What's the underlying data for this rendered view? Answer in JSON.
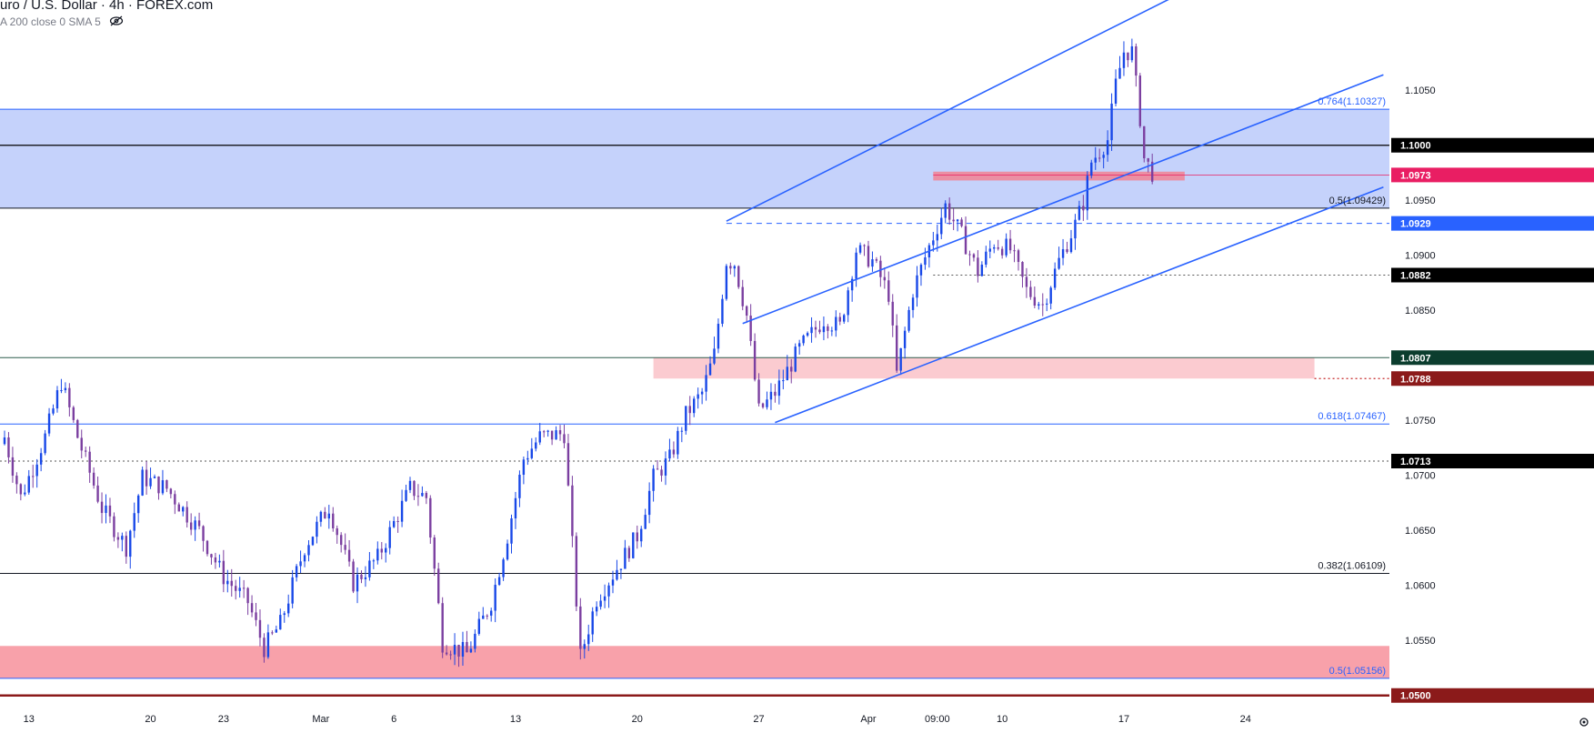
{
  "legend": {
    "title": "uro / U.S. Dollar · 4h · FOREX.com",
    "sma": "A 200 close 0 SMA 5",
    "eye_icon": "eye-slash-icon"
  },
  "settings_icon": "gear-icon",
  "chart_data": {
    "type": "candlestick",
    "y_range": [
      1.0494,
      1.1132
    ],
    "y_ticks": [
      {
        "v": 1.105,
        "label": "1.1050"
      },
      {
        "v": 1.095,
        "label": "1.0950"
      },
      {
        "v": 1.09,
        "label": "1.0900"
      },
      {
        "v": 1.085,
        "label": "1.0850"
      },
      {
        "v": 1.075,
        "label": "1.0750"
      },
      {
        "v": 1.07,
        "label": "1.0700"
      },
      {
        "v": 1.065,
        "label": "1.0650"
      },
      {
        "v": 1.06,
        "label": "1.0600"
      },
      {
        "v": 1.055,
        "label": "1.0550"
      }
    ],
    "x_ticks": [
      {
        "i": 6,
        "label": "13"
      },
      {
        "i": 36,
        "label": "20"
      },
      {
        "i": 54,
        "label": "23"
      },
      {
        "i": 78,
        "label": "Mar"
      },
      {
        "i": 96,
        "label": "6"
      },
      {
        "i": 126,
        "label": "13"
      },
      {
        "i": 156,
        "label": "20"
      },
      {
        "i": 186,
        "label": "27"
      },
      {
        "i": 213,
        "label": "Apr"
      },
      {
        "i": 230,
        "label": "09:00"
      },
      {
        "i": 246,
        "label": "10"
      },
      {
        "i": 276,
        "label": "17"
      },
      {
        "i": 306,
        "label": "24"
      }
    ],
    "price_labels": [
      {
        "v": 1.1,
        "label": "1.1000",
        "bg": "#000000",
        "fg": "#ffffff"
      },
      {
        "v": 1.0973,
        "label": "1.0973",
        "bg": "#e91e63",
        "fg": "#ffffff"
      },
      {
        "v": 1.0929,
        "label": "1.0929",
        "bg": "#2962ff",
        "fg": "#ffffff"
      },
      {
        "v": 1.0882,
        "label": "1.0882",
        "bg": "#000000",
        "fg": "#ffffff"
      },
      {
        "v": 1.0807,
        "label": "1.0807",
        "bg": "#0b3d2e",
        "fg": "#ffffff"
      },
      {
        "v": 1.0788,
        "label": "1.0788",
        "bg": "#8b1a1a",
        "fg": "#ffffff"
      },
      {
        "v": 1.0713,
        "label": "1.0713",
        "bg": "#000000",
        "fg": "#ffffff"
      },
      {
        "v": 1.05,
        "label": "1.0500",
        "bg": "#8b1a1a",
        "fg": "#ffffff"
      }
    ],
    "fib_levels": [
      {
        "v": 1.10327,
        "label": "0.764(1.10327)",
        "color": "#2962ff"
      },
      {
        "v": 1.09429,
        "label": "0.5(1.09429)",
        "color": "#131722"
      },
      {
        "v": 1.07467,
        "label": "0.618(1.07467)",
        "color": "#2962ff"
      },
      {
        "v": 1.06109,
        "label": "0.382(1.06109)",
        "color": "#131722"
      },
      {
        "v": 1.05156,
        "label": "0.5(1.05156)",
        "color": "#2962ff"
      }
    ],
    "zones": [
      {
        "from": 1.09429,
        "to": 1.10327,
        "i_from": -5,
        "i_to": 400,
        "color": "#c5d2fb"
      },
      {
        "from": 1.0788,
        "to": 1.0807,
        "i_from": 160,
        "i_to": 323,
        "color": "#fbcbd0"
      },
      {
        "from": 1.0968,
        "to": 1.0976,
        "i_from": 229,
        "i_to": 291,
        "color": "#eb8fa3"
      },
      {
        "from": 1.05156,
        "to": 1.0545,
        "i_from": -5,
        "i_to": 400,
        "color": "#f8a1aa"
      }
    ],
    "h_lines": [
      {
        "v": 1.1,
        "color": "#000000",
        "width": 1.2,
        "dash": ""
      },
      {
        "v": 1.0973,
        "color": "#e91e63",
        "width": 0.8,
        "dash": "",
        "i_from": 229
      },
      {
        "v": 1.0929,
        "color": "#2962ff",
        "width": 1,
        "dash": "6,5",
        "i_from": 178
      },
      {
        "v": 1.0882,
        "color": "#555555",
        "width": 1,
        "dash": "2,3",
        "i_from": 229
      },
      {
        "v": 1.0807,
        "color": "#2e5e4e",
        "width": 1,
        "dash": ""
      },
      {
        "v": 1.0788,
        "color": "#c62828",
        "width": 1.2,
        "dash": "2,3",
        "i_from": 323
      },
      {
        "v": 1.0713,
        "color": "#555555",
        "width": 1,
        "dash": "2,3"
      },
      {
        "v": 1.05,
        "color": "#8b1a1a",
        "width": 2.5,
        "dash": ""
      }
    ],
    "trend_lines": [
      {
        "i1": 178,
        "v1": 1.0931,
        "i2": 290,
        "v2": 1.1138,
        "color": "#2962ff"
      },
      {
        "i1": 182,
        "v1": 1.0838,
        "i2": 340,
        "v2": 1.1064,
        "color": "#2962ff"
      },
      {
        "i1": 190,
        "v1": 1.0748,
        "i2": 340,
        "v2": 1.0962,
        "color": "#2962ff"
      }
    ],
    "anchors": [
      {
        "i": -2,
        "v": 1.0762
      },
      {
        "i": 4,
        "v": 1.068
      },
      {
        "i": 10,
        "v": 1.0735
      },
      {
        "i": 14,
        "v": 1.0785
      },
      {
        "i": 18,
        "v": 1.0735
      },
      {
        "i": 24,
        "v": 1.067
      },
      {
        "i": 30,
        "v": 1.0635
      },
      {
        "i": 34,
        "v": 1.0698
      },
      {
        "i": 40,
        "v": 1.0688
      },
      {
        "i": 48,
        "v": 1.065
      },
      {
        "i": 54,
        "v": 1.0608
      },
      {
        "i": 60,
        "v": 1.0585
      },
      {
        "i": 64,
        "v": 1.0543
      },
      {
        "i": 68,
        "v": 1.0565
      },
      {
        "i": 74,
        "v": 1.0635
      },
      {
        "i": 80,
        "v": 1.0672
      },
      {
        "i": 86,
        "v": 1.0602
      },
      {
        "i": 92,
        "v": 1.0625
      },
      {
        "i": 100,
        "v": 1.0688
      },
      {
        "i": 104,
        "v": 1.068
      },
      {
        "i": 108,
        "v": 1.0548
      },
      {
        "i": 114,
        "v": 1.0538
      },
      {
        "i": 120,
        "v": 1.0585
      },
      {
        "i": 124,
        "v": 1.0645
      },
      {
        "i": 128,
        "v": 1.0715
      },
      {
        "i": 132,
        "v": 1.0735
      },
      {
        "i": 138,
        "v": 1.0738
      },
      {
        "i": 142,
        "v": 1.0535
      },
      {
        "i": 146,
        "v": 1.0588
      },
      {
        "i": 150,
        "v": 1.061
      },
      {
        "i": 156,
        "v": 1.0645
      },
      {
        "i": 160,
        "v": 1.0698
      },
      {
        "i": 164,
        "v": 1.0715
      },
      {
        "i": 168,
        "v": 1.0755
      },
      {
        "i": 172,
        "v": 1.0775
      },
      {
        "i": 175,
        "v": 1.081
      },
      {
        "i": 178,
        "v": 1.0895
      },
      {
        "i": 180,
        "v": 1.0893
      },
      {
        "i": 183,
        "v": 1.0845
      },
      {
        "i": 186,
        "v": 1.0758
      },
      {
        "i": 190,
        "v": 1.0775
      },
      {
        "i": 196,
        "v": 1.0815
      },
      {
        "i": 202,
        "v": 1.0842
      },
      {
        "i": 206,
        "v": 1.0835
      },
      {
        "i": 210,
        "v": 1.0905
      },
      {
        "i": 214,
        "v": 1.0895
      },
      {
        "i": 218,
        "v": 1.0865
      },
      {
        "i": 220,
        "v": 1.0792
      },
      {
        "i": 224,
        "v": 1.0868
      },
      {
        "i": 228,
        "v": 1.0908
      },
      {
        "i": 232,
        "v": 1.0945
      },
      {
        "i": 236,
        "v": 1.0918
      },
      {
        "i": 240,
        "v": 1.0885
      },
      {
        "i": 244,
        "v": 1.0912
      },
      {
        "i": 248,
        "v": 1.0905
      },
      {
        "i": 252,
        "v": 1.0868
      },
      {
        "i": 256,
        "v": 1.0855
      },
      {
        "i": 260,
        "v": 1.0895
      },
      {
        "i": 264,
        "v": 1.0928
      },
      {
        "i": 266,
        "v": 1.0948
      },
      {
        "i": 268,
        "v": 1.0985
      },
      {
        "i": 272,
        "v": 1.1005
      },
      {
        "i": 274,
        "v": 1.1055
      },
      {
        "i": 276,
        "v": 1.1085
      },
      {
        "i": 278,
        "v": 1.1085
      },
      {
        "i": 280,
        "v": 1.1025
      },
      {
        "i": 281,
        "v": 1.0988
      },
      {
        "i": 283,
        "v": 1.0975
      }
    ]
  }
}
